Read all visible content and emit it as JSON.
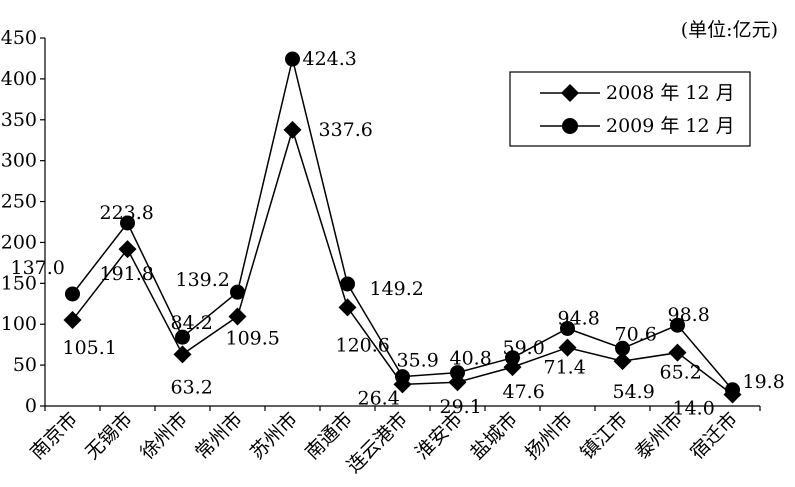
{
  "chart_data": {
    "type": "line",
    "unit": "(单位:亿元)",
    "categories": [
      "南京市",
      "无锡市",
      "徐州市",
      "常州市",
      "苏州市",
      "南通市",
      "连云港市",
      "淮安市",
      "盐城市",
      "扬州市",
      "镇江市",
      "泰州市",
      "宿迁市"
    ],
    "ylim": [
      0,
      450
    ],
    "yticks": [
      "0",
      "50",
      "100",
      "150",
      "200",
      "250",
      "300",
      "350",
      "400",
      "450"
    ],
    "series": [
      {
        "name": "2008 年 12 月",
        "marker": "diamond",
        "values": [
          105.1,
          191.8,
          63.2,
          109.5,
          337.6,
          120.6,
          26.4,
          29.1,
          47.6,
          71.4,
          54.9,
          65.2,
          14.0
        ],
        "labels": [
          "105.1",
          "191.8",
          "63.2",
          "109.5",
          "337.6",
          "120.6",
          "26.4",
          "29.1",
          "47.6",
          "71.4",
          "54.9",
          "65.2",
          "14.0"
        ]
      },
      {
        "name": "2009 年 12 月",
        "marker": "circle",
        "values": [
          137.0,
          223.8,
          84.2,
          139.2,
          424.3,
          149.2,
          35.9,
          40.8,
          59.0,
          94.8,
          70.6,
          98.8,
          19.8
        ],
        "labels": [
          "137.0",
          "223.8",
          "84.2",
          "139.2",
          "424.3",
          "149.2",
          "35.9",
          "40.8",
          "59.0",
          "94.8",
          "70.6",
          "98.8",
          "19.8"
        ]
      }
    ],
    "legend": "top-right",
    "grid": false
  }
}
